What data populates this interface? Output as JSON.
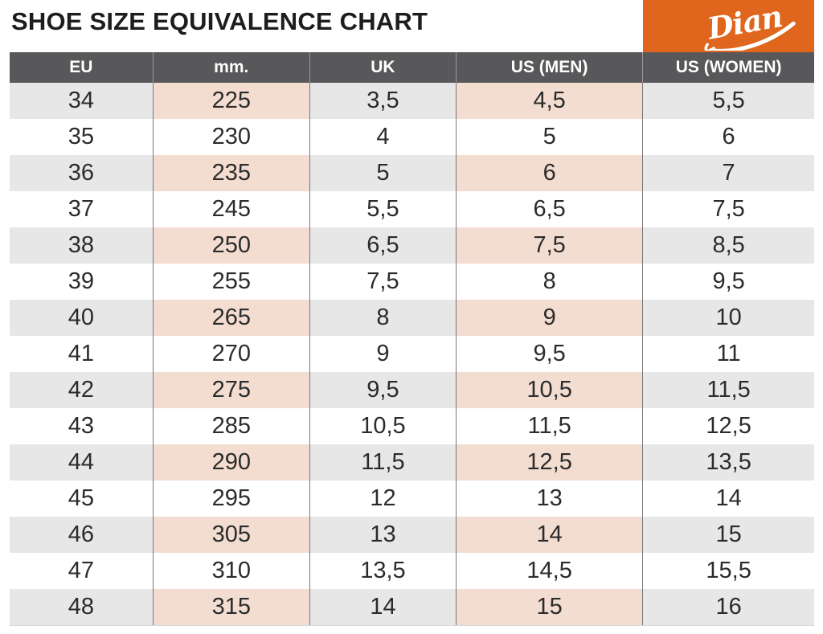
{
  "page": {
    "title": "SHOE SIZE EQUIVALENCE CHART"
  },
  "logo": {
    "brand": "Dian",
    "background": "#DF661C",
    "text_color": "#FFFFFF"
  },
  "colors": {
    "header_bg": "#58585A",
    "header_text": "#FFFFFF",
    "row_bg": "#FFFFFF",
    "row_alt_bg": "#E7E7E8",
    "highlight_bg": "#F3DDD1",
    "cell_text": "#2B2B2B",
    "title_text": "#1D1D1B"
  },
  "table": {
    "headers": [
      "EU",
      "mm.",
      "UK",
      "US (MEN)",
      "US (WOMEN)"
    ],
    "highlight_columns": [
      1,
      3
    ],
    "rows": [
      [
        "34",
        "225",
        "3,5",
        "4,5",
        "5,5"
      ],
      [
        "35",
        "230",
        "4",
        "5",
        "6"
      ],
      [
        "36",
        "235",
        "5",
        "6",
        "7"
      ],
      [
        "37",
        "245",
        "5,5",
        "6,5",
        "7,5"
      ],
      [
        "38",
        "250",
        "6,5",
        "7,5",
        "8,5"
      ],
      [
        "39",
        "255",
        "7,5",
        "8",
        "9,5"
      ],
      [
        "40",
        "265",
        "8",
        "9",
        "10"
      ],
      [
        "41",
        "270",
        "9",
        "9,5",
        "11"
      ],
      [
        "42",
        "275",
        "9,5",
        "10,5",
        "11,5"
      ],
      [
        "43",
        "285",
        "10,5",
        "11,5",
        "12,5"
      ],
      [
        "44",
        "290",
        "11,5",
        "12,5",
        "13,5"
      ],
      [
        "45",
        "295",
        "12",
        "13",
        "14"
      ],
      [
        "46",
        "305",
        "13",
        "14",
        "15"
      ],
      [
        "47",
        "310",
        "13,5",
        "14,5",
        "15,5"
      ],
      [
        "48",
        "315",
        "14",
        "15",
        "16"
      ]
    ]
  },
  "chart_data": {
    "type": "table",
    "title": "SHOE SIZE EQUIVALENCE CHART",
    "columns": [
      "EU",
      "mm.",
      "UK",
      "US (MEN)",
      "US (WOMEN)"
    ],
    "rows": [
      [
        "34",
        "225",
        "3,5",
        "4,5",
        "5,5"
      ],
      [
        "35",
        "230",
        "4",
        "5",
        "6"
      ],
      [
        "36",
        "235",
        "5",
        "6",
        "7"
      ],
      [
        "37",
        "245",
        "5,5",
        "6,5",
        "7,5"
      ],
      [
        "38",
        "250",
        "6,5",
        "7,5",
        "8,5"
      ],
      [
        "39",
        "255",
        "7,5",
        "8",
        "9,5"
      ],
      [
        "40",
        "265",
        "8",
        "9",
        "10"
      ],
      [
        "41",
        "270",
        "9",
        "9,5",
        "11"
      ],
      [
        "42",
        "275",
        "9,5",
        "10,5",
        "11,5"
      ],
      [
        "43",
        "285",
        "10,5",
        "11,5",
        "12,5"
      ],
      [
        "44",
        "290",
        "11,5",
        "12,5",
        "13,5"
      ],
      [
        "45",
        "295",
        "12",
        "13",
        "14"
      ],
      [
        "46",
        "305",
        "13",
        "14",
        "15"
      ],
      [
        "47",
        "310",
        "13,5",
        "14,5",
        "15,5"
      ],
      [
        "48",
        "315",
        "14",
        "15",
        "16"
      ]
    ],
    "notes": "Highlighted (peach) cells on alternating rows in columns mm. and US (MEN); alternating gray row shading elsewhere."
  }
}
